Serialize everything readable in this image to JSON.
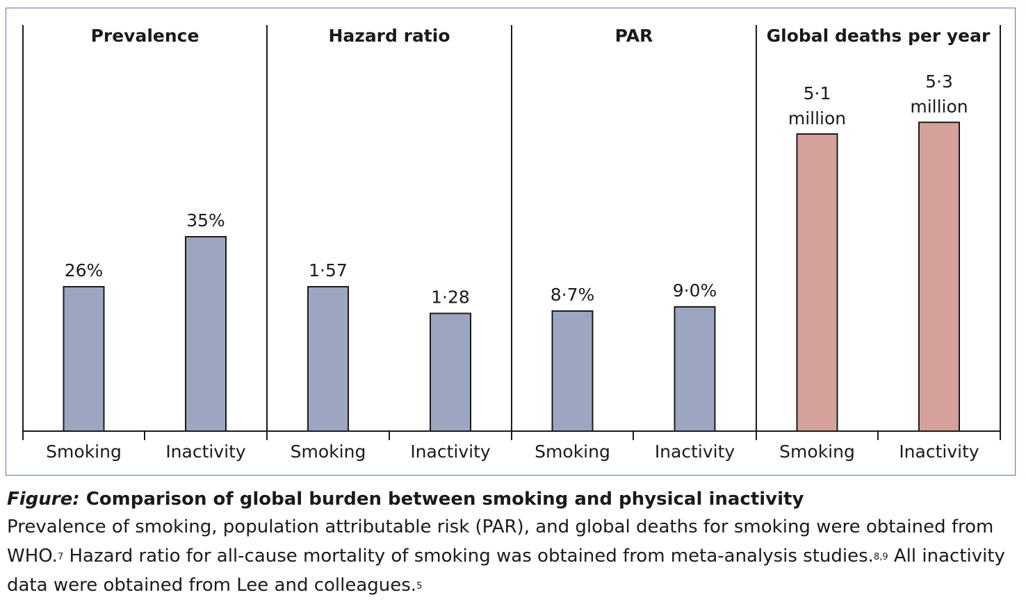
{
  "chart_data": [
    {
      "type": "bar",
      "title": "Prevalence",
      "categories": [
        "Smoking",
        "Inactivity"
      ],
      "values": [
        26,
        35
      ],
      "value_labels": [
        "26%",
        "35%"
      ],
      "color": "#9ca6c1"
    },
    {
      "type": "bar",
      "title": "Hazard ratio",
      "categories": [
        "Smoking",
        "Inactivity"
      ],
      "values": [
        1.57,
        1.28
      ],
      "value_labels": [
        "1·57",
        "1·28"
      ],
      "color": "#9ca6c1"
    },
    {
      "type": "bar",
      "title": "PAR",
      "categories": [
        "Smoking",
        "Inactivity"
      ],
      "values": [
        8.7,
        9.0
      ],
      "value_labels": [
        "8·7%",
        "9·0%"
      ],
      "color": "#9ca6c1"
    },
    {
      "type": "bar",
      "title": "Global deaths per year",
      "categories": [
        "Smoking",
        "Inactivity"
      ],
      "values": [
        5.1,
        5.3
      ],
      "value_labels": [
        [
          "5·1",
          "million"
        ],
        [
          "5·3",
          "million"
        ]
      ],
      "color": "#d4a29a"
    }
  ],
  "caption": {
    "label": "Figure:",
    "title": " Comparison of global burden between smoking and physical inactivity",
    "body_1": "Prevalence of smoking, population attributable risk (PAR), and global deaths for smoking were obtained from WHO.",
    "ref_1": "7",
    "body_2": " Hazard ratio for all-cause mortality of smoking was obtained from meta-analysis studies.",
    "ref_2": "8,9",
    "body_3": " All inactivity data were obtained from Lee and colleagues.",
    "ref_3": "5"
  }
}
